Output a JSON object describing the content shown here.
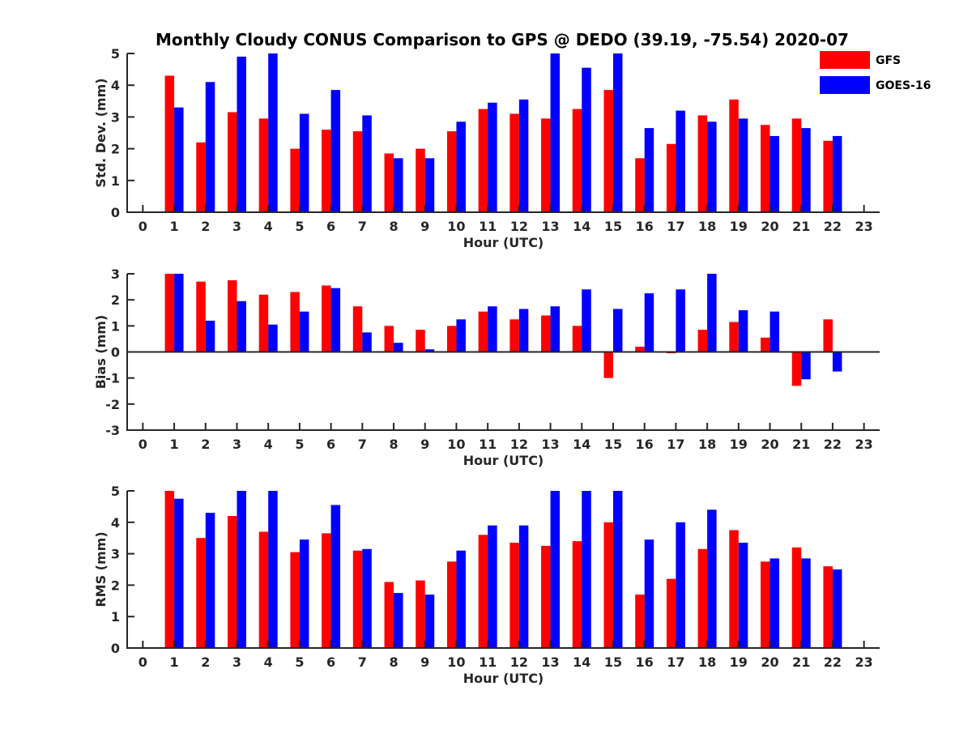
{
  "figure": {
    "title": "Monthly Cloudy CONUS Comparison to GPS @ DEDO (39.19, -75.54) 2020-07"
  },
  "legend": {
    "placement": "top-right",
    "entries": [
      {
        "name": "GFS",
        "color": "#ff0000"
      },
      {
        "name": "GOES-16",
        "color": "#0000ff"
      }
    ]
  },
  "chart_data": [
    {
      "type": "bar",
      "xlabel": "Hour (UTC)",
      "ylabel": "Std. Dev. (mm)",
      "xlim": [
        -0.5,
        23.5
      ],
      "ylim": [
        0,
        5
      ],
      "yticks": [
        0,
        1,
        2,
        3,
        4,
        5
      ],
      "x": [
        0,
        1,
        2,
        3,
        4,
        5,
        6,
        7,
        8,
        9,
        10,
        11,
        12,
        13,
        14,
        15,
        16,
        17,
        18,
        19,
        20,
        21,
        22,
        23
      ],
      "series": [
        {
          "name": "GFS",
          "color": "#ff0000",
          "values": [
            null,
            4.3,
            2.2,
            3.15,
            2.95,
            2.0,
            2.6,
            2.55,
            1.85,
            2.0,
            2.55,
            3.25,
            3.1,
            2.95,
            3.25,
            3.85,
            1.7,
            2.15,
            3.05,
            3.55,
            2.75,
            2.95,
            2.25,
            null
          ]
        },
        {
          "name": "GOES-16",
          "color": "#0000ff",
          "values": [
            null,
            3.3,
            4.1,
            4.9,
            5.0,
            3.1,
            3.85,
            3.05,
            1.7,
            1.7,
            2.85,
            3.45,
            3.55,
            5.0,
            4.55,
            5.0,
            2.65,
            3.2,
            2.85,
            2.95,
            2.4,
            2.65,
            2.4,
            null
          ]
        }
      ]
    },
    {
      "type": "bar",
      "xlabel": "Hour (UTC)",
      "ylabel": "Bias (mm)",
      "xlim": [
        -0.5,
        23.5
      ],
      "ylim": [
        -3,
        3
      ],
      "yticks": [
        -3,
        -2,
        -1,
        0,
        1,
        2,
        3
      ],
      "x": [
        0,
        1,
        2,
        3,
        4,
        5,
        6,
        7,
        8,
        9,
        10,
        11,
        12,
        13,
        14,
        15,
        16,
        17,
        18,
        19,
        20,
        21,
        22,
        23
      ],
      "series": [
        {
          "name": "GFS",
          "color": "#ff0000",
          "values": [
            null,
            3.0,
            2.7,
            2.75,
            2.2,
            2.3,
            2.55,
            1.75,
            1.0,
            0.85,
            1.0,
            1.55,
            1.25,
            1.4,
            1.0,
            -1.0,
            0.2,
            -0.05,
            0.85,
            1.15,
            0.55,
            -1.3,
            1.25,
            null
          ]
        },
        {
          "name": "GOES-16",
          "color": "#0000ff",
          "values": [
            null,
            3.0,
            1.2,
            1.95,
            1.05,
            1.55,
            2.45,
            0.75,
            0.35,
            0.1,
            1.25,
            1.75,
            1.65,
            1.75,
            2.4,
            1.65,
            2.25,
            2.4,
            3.0,
            1.6,
            1.55,
            -1.05,
            -0.75,
            null
          ]
        }
      ]
    },
    {
      "type": "bar",
      "xlabel": "Hour (UTC)",
      "ylabel": "RMS (mm)",
      "xlim": [
        -0.5,
        23.5
      ],
      "ylim": [
        0,
        5
      ],
      "yticks": [
        0,
        1,
        2,
        3,
        4,
        5
      ],
      "x": [
        0,
        1,
        2,
        3,
        4,
        5,
        6,
        7,
        8,
        9,
        10,
        11,
        12,
        13,
        14,
        15,
        16,
        17,
        18,
        19,
        20,
        21,
        22,
        23
      ],
      "series": [
        {
          "name": "GFS",
          "color": "#ff0000",
          "values": [
            null,
            5.0,
            3.5,
            4.2,
            3.7,
            3.05,
            3.65,
            3.1,
            2.1,
            2.15,
            2.75,
            3.6,
            3.35,
            3.25,
            3.4,
            4.0,
            1.7,
            2.2,
            3.15,
            3.75,
            2.75,
            3.2,
            2.6,
            null
          ]
        },
        {
          "name": "GOES-16",
          "color": "#0000ff",
          "values": [
            null,
            4.75,
            4.3,
            5.0,
            5.0,
            3.45,
            4.55,
            3.15,
            1.75,
            1.7,
            3.1,
            3.9,
            3.9,
            5.0,
            5.0,
            5.0,
            3.45,
            4.0,
            4.4,
            3.35,
            2.85,
            2.85,
            2.5,
            null
          ]
        }
      ]
    }
  ]
}
